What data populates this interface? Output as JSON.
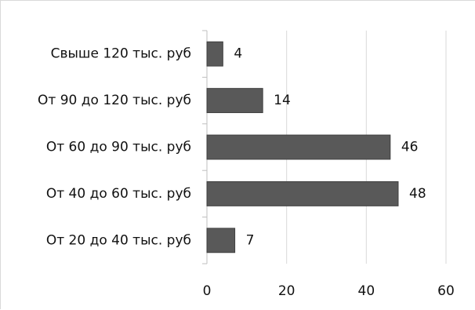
{
  "chart_data": {
    "type": "bar",
    "orientation": "horizontal",
    "categories": [
      "Свыше 120 тыс. руб",
      "От 90 до 120 тыс. руб",
      "От 60 до 90 тыс. руб",
      "От 40 до 60 тыс. руб",
      "От 20 до 40 тыс. руб"
    ],
    "values": [
      4,
      14,
      46,
      48,
      7
    ],
    "data_labels": [
      "4",
      "14",
      "46",
      "48",
      "7"
    ],
    "title": "",
    "xlabel": "",
    "ylabel": "",
    "xlim": [
      0,
      60
    ],
    "x_ticks": [
      0,
      20,
      40,
      60
    ],
    "x_tick_labels": [
      "0",
      "20",
      "40",
      "60"
    ],
    "grid": "vertical",
    "legend": "none",
    "colors": {
      "bar": "#595959",
      "bar_stroke": "#404040",
      "grid": "#d9d9d9",
      "axis": "#bfbfbf",
      "text": "#111111"
    }
  }
}
